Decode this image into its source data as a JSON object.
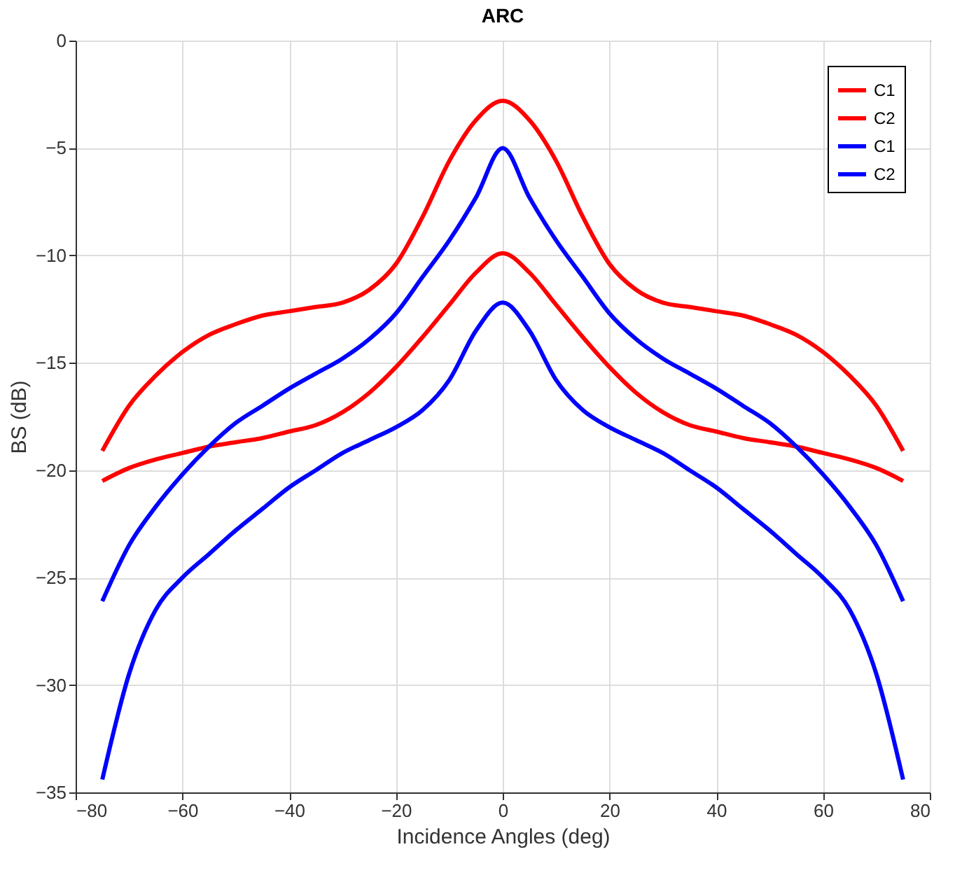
{
  "chart_data": {
    "type": "line",
    "title": "ARC",
    "xlabel": "Incidence Angles (deg)",
    "ylabel": "BS (dB)",
    "x": [
      -75,
      -70,
      -65,
      -60,
      -55,
      -50,
      -45,
      -40,
      -35,
      -30,
      -25,
      -20,
      -15,
      -10,
      -5,
      0,
      5,
      10,
      15,
      20,
      25,
      30,
      35,
      40,
      45,
      50,
      55,
      60,
      65,
      70,
      75
    ],
    "series": [
      {
        "name": "C1",
        "color": "#ff0000",
        "values": [
          -19.1,
          -17.0,
          -15.6,
          -14.5,
          -13.7,
          -13.2,
          -12.8,
          -12.6,
          -12.4,
          -12.2,
          -11.6,
          -10.4,
          -8.2,
          -5.6,
          -3.7,
          -2.8,
          -3.7,
          -5.6,
          -8.2,
          -10.4,
          -11.6,
          -12.2,
          -12.4,
          -12.6,
          -12.8,
          -13.2,
          -13.7,
          -14.5,
          -15.6,
          -17.0,
          -19.1
        ]
      },
      {
        "name": "C2",
        "color": "#ff0000",
        "values": [
          -20.5,
          -19.9,
          -19.5,
          -19.2,
          -18.9,
          -18.7,
          -18.5,
          -18.2,
          -17.9,
          -17.3,
          -16.4,
          -15.2,
          -13.8,
          -12.3,
          -10.8,
          -9.9,
          -10.8,
          -12.3,
          -13.8,
          -15.2,
          -16.4,
          -17.3,
          -17.9,
          -18.2,
          -18.5,
          -18.7,
          -18.9,
          -19.2,
          -19.5,
          -19.9,
          -20.5
        ]
      },
      {
        "name": "C1",
        "color": "#0000ff",
        "values": [
          -26.1,
          -23.5,
          -21.7,
          -20.2,
          -18.9,
          -17.8,
          -17.0,
          -16.2,
          -15.5,
          -14.8,
          -13.9,
          -12.7,
          -11.0,
          -9.3,
          -7.3,
          -5.0,
          -7.3,
          -9.3,
          -11.0,
          -12.7,
          -13.9,
          -14.8,
          -15.5,
          -16.2,
          -17.0,
          -17.8,
          -18.9,
          -20.2,
          -21.7,
          -23.5,
          -26.1
        ]
      },
      {
        "name": "C2",
        "color": "#0000ff",
        "values": [
          -34.4,
          -29.5,
          -26.5,
          -25.0,
          -23.9,
          -22.8,
          -21.8,
          -20.8,
          -20.0,
          -19.2,
          -18.6,
          -18.0,
          -17.2,
          -15.8,
          -13.5,
          -12.2,
          -13.5,
          -15.8,
          -17.2,
          -18.0,
          -18.6,
          -19.2,
          -20.0,
          -20.8,
          -21.8,
          -22.8,
          -23.9,
          -25.0,
          -26.5,
          -29.5,
          -34.4
        ]
      }
    ],
    "xlim": [
      -80,
      80
    ],
    "xticks": [
      -80,
      -60,
      -40,
      -20,
      0,
      20,
      40,
      60,
      80
    ],
    "ylim": [
      -35,
      0
    ],
    "yticks": [
      -35,
      -30,
      -25,
      -20,
      -15,
      -10,
      -5,
      0
    ],
    "grid": true,
    "legend": "top right"
  }
}
